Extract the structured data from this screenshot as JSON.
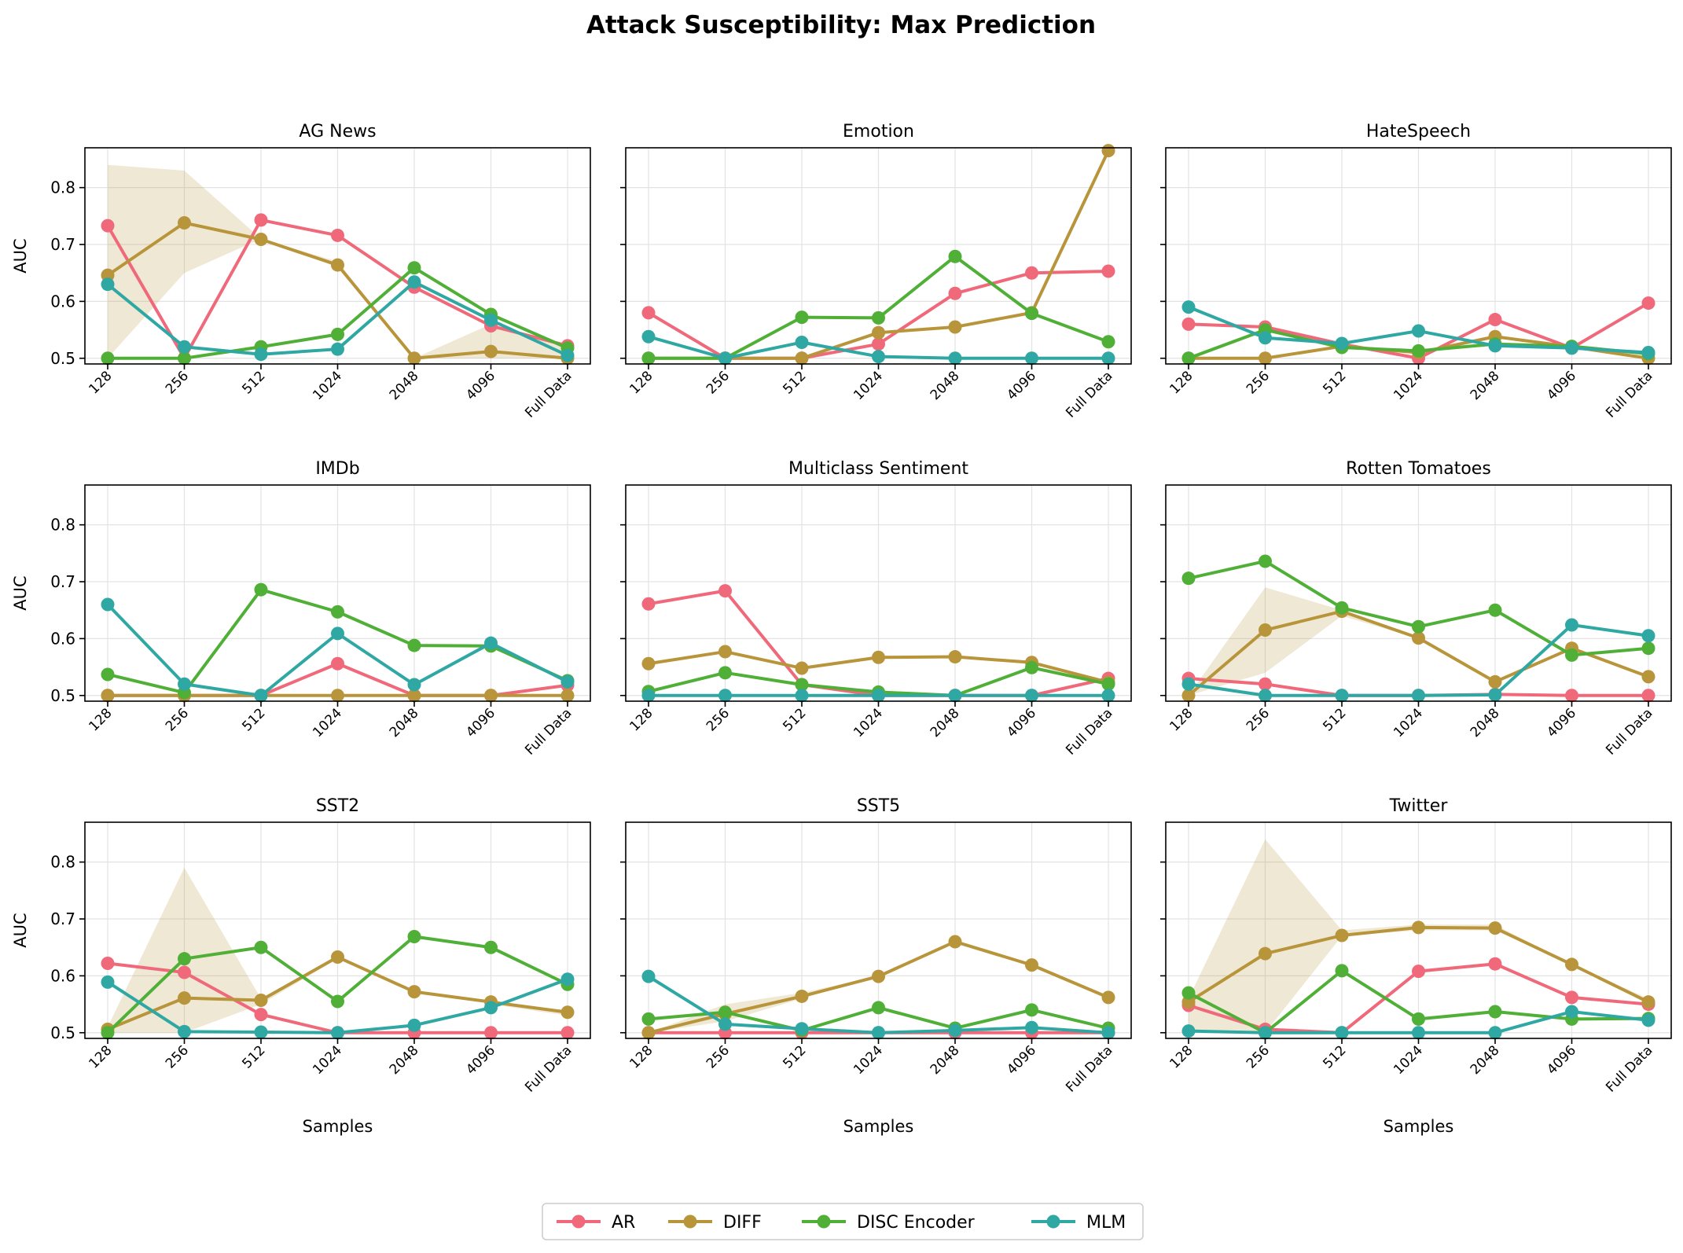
{
  "title": "Attack Susceptibility: Max Prediction",
  "legend": {
    "placement": "bottom-center",
    "items": [
      {
        "name": "AR",
        "color": "#f0697b"
      },
      {
        "name": "DIFF",
        "color": "#b8953a"
      },
      {
        "name": "DISC Encoder",
        "color": "#4faf36"
      },
      {
        "name": "MLM",
        "color": "#2fa8a4"
      }
    ]
  },
  "shared_axes": {
    "categories": [
      "128",
      "256",
      "512",
      "1024",
      "2048",
      "4096",
      "Full Data"
    ],
    "ylim": [
      0.49,
      0.87
    ],
    "yticks": [
      "0.5",
      "0.6",
      "0.7",
      "0.8"
    ],
    "ylabel": "AUC",
    "xlabel": "Samples"
  },
  "chart_data": [
    {
      "type": "line",
      "title": "AG News",
      "grid": true,
      "series": [
        {
          "name": "AR",
          "values": [
            0.733,
            0.5,
            0.743,
            0.716,
            0.625,
            0.557,
            0.522
          ]
        },
        {
          "name": "DIFF",
          "values": [
            0.646,
            0.738,
            0.709,
            0.664,
            0.5,
            0.512,
            0.5
          ]
        },
        {
          "name": "DISC Encoder",
          "values": [
            0.5,
            0.5,
            0.52,
            0.542,
            0.659,
            0.577,
            0.518
          ]
        },
        {
          "name": "MLM",
          "values": [
            0.63,
            0.52,
            0.507,
            0.516,
            0.634,
            0.567,
            0.505
          ]
        }
      ],
      "band": {
        "series": "DIFF",
        "lower": [
          0.5,
          0.65,
          0.71,
          0.66,
          0.5,
          0.5,
          0.5
        ],
        "upper": [
          0.84,
          0.83,
          0.71,
          0.67,
          0.5,
          0.56,
          0.52
        ]
      }
    },
    {
      "type": "line",
      "title": "Emotion",
      "grid": true,
      "series": [
        {
          "name": "AR",
          "values": [
            0.58,
            0.5,
            0.5,
            0.525,
            0.614,
            0.65,
            0.653
          ]
        },
        {
          "name": "DIFF",
          "values": [
            0.5,
            0.5,
            0.5,
            0.545,
            0.555,
            0.58,
            0.865
          ]
        },
        {
          "name": "DISC Encoder",
          "values": [
            0.5,
            0.5,
            0.572,
            0.571,
            0.679,
            0.579,
            0.529
          ]
        },
        {
          "name": "MLM",
          "values": [
            0.538,
            0.5,
            0.528,
            0.503,
            0.5,
            0.5,
            0.5
          ]
        }
      ]
    },
    {
      "type": "line",
      "title": "HateSpeech",
      "grid": true,
      "series": [
        {
          "name": "AR",
          "values": [
            0.56,
            0.555,
            0.525,
            0.5,
            0.568,
            0.518,
            0.597
          ]
        },
        {
          "name": "DIFF",
          "values": [
            0.5,
            0.5,
            0.521,
            0.51,
            0.538,
            0.52,
            0.5
          ]
        },
        {
          "name": "DISC Encoder",
          "values": [
            0.5,
            0.55,
            0.519,
            0.513,
            0.525,
            0.521,
            0.508
          ]
        },
        {
          "name": "MLM",
          "values": [
            0.59,
            0.536,
            0.526,
            0.548,
            0.522,
            0.518,
            0.51
          ]
        }
      ]
    },
    {
      "type": "line",
      "title": "IMDb",
      "grid": true,
      "series": [
        {
          "name": "AR",
          "values": [
            0.5,
            0.5,
            0.5,
            0.556,
            0.5,
            0.5,
            0.518
          ]
        },
        {
          "name": "DIFF",
          "values": [
            0.5,
            0.5,
            0.5,
            0.5,
            0.5,
            0.5,
            0.5
          ]
        },
        {
          "name": "DISC Encoder",
          "values": [
            0.537,
            0.505,
            0.686,
            0.647,
            0.588,
            0.587,
            0.526
          ]
        },
        {
          "name": "MLM",
          "values": [
            0.66,
            0.52,
            0.5,
            0.609,
            0.519,
            0.592,
            0.524
          ]
        }
      ]
    },
    {
      "type": "line",
      "title": "Multiclass Sentiment",
      "grid": true,
      "series": [
        {
          "name": "AR",
          "values": [
            0.661,
            0.684,
            0.519,
            0.5,
            0.5,
            0.5,
            0.53
          ]
        },
        {
          "name": "DIFF",
          "values": [
            0.556,
            0.577,
            0.548,
            0.567,
            0.568,
            0.558,
            0.523
          ]
        },
        {
          "name": "DISC Encoder",
          "values": [
            0.507,
            0.54,
            0.519,
            0.506,
            0.5,
            0.549,
            0.52
          ]
        },
        {
          "name": "MLM",
          "values": [
            0.5,
            0.5,
            0.5,
            0.5,
            0.5,
            0.5,
            0.5
          ]
        }
      ]
    },
    {
      "type": "line",
      "title": "Rotten Tomatoes",
      "grid": true,
      "series": [
        {
          "name": "AR",
          "values": [
            0.53,
            0.52,
            0.5,
            0.5,
            0.502,
            0.5,
            0.5
          ]
        },
        {
          "name": "DIFF",
          "values": [
            0.5,
            0.615,
            0.648,
            0.601,
            0.524,
            0.583,
            0.533
          ]
        },
        {
          "name": "DISC Encoder",
          "values": [
            0.706,
            0.736,
            0.654,
            0.621,
            0.65,
            0.571,
            0.583
          ]
        },
        {
          "name": "MLM",
          "values": [
            0.52,
            0.5,
            0.5,
            0.5,
            0.501,
            0.624,
            0.605
          ]
        }
      ],
      "band": {
        "series": "DIFF",
        "lower": [
          0.5,
          0.54,
          0.64,
          0.6,
          0.52,
          0.58,
          0.53
        ],
        "upper": [
          0.5,
          0.69,
          0.65,
          0.6,
          0.52,
          0.58,
          0.53
        ]
      }
    },
    {
      "type": "line",
      "title": "SST2",
      "grid": true,
      "series": [
        {
          "name": "AR",
          "values": [
            0.622,
            0.606,
            0.532,
            0.5,
            0.5,
            0.5,
            0.5
          ]
        },
        {
          "name": "DIFF",
          "values": [
            0.506,
            0.561,
            0.557,
            0.633,
            0.572,
            0.554,
            0.536
          ]
        },
        {
          "name": "DISC Encoder",
          "values": [
            0.5,
            0.63,
            0.65,
            0.555,
            0.669,
            0.65,
            0.585
          ]
        },
        {
          "name": "MLM",
          "values": [
            0.589,
            0.502,
            0.501,
            0.5,
            0.513,
            0.544,
            0.594
          ]
        }
      ],
      "band": {
        "series": "DIFF",
        "lower": [
          0.5,
          0.5,
          0.55,
          0.63,
          0.57,
          0.55,
          0.53
        ],
        "upper": [
          0.51,
          0.79,
          0.56,
          0.63,
          0.57,
          0.55,
          0.54
        ]
      }
    },
    {
      "type": "line",
      "title": "SST5",
      "grid": true,
      "series": [
        {
          "name": "AR",
          "values": [
            0.5,
            0.5,
            0.5,
            0.5,
            0.5,
            0.5,
            0.5
          ]
        },
        {
          "name": "DIFF",
          "values": [
            0.5,
            0.533,
            0.564,
            0.599,
            0.66,
            0.619,
            0.562
          ]
        },
        {
          "name": "DISC Encoder",
          "values": [
            0.524,
            0.536,
            0.504,
            0.544,
            0.508,
            0.54,
            0.508
          ]
        },
        {
          "name": "MLM",
          "values": [
            0.599,
            0.515,
            0.507,
            0.5,
            0.504,
            0.509,
            0.5
          ]
        }
      ],
      "band": {
        "series": "DIFF",
        "lower": [
          0.5,
          0.52,
          0.56,
          0.6,
          0.66,
          0.62,
          0.56
        ],
        "upper": [
          0.5,
          0.55,
          0.57,
          0.6,
          0.66,
          0.62,
          0.56
        ]
      }
    },
    {
      "type": "line",
      "title": "Twitter",
      "grid": true,
      "series": [
        {
          "name": "AR",
          "values": [
            0.548,
            0.506,
            0.5,
            0.608,
            0.621,
            0.562,
            0.55
          ]
        },
        {
          "name": "DIFF",
          "values": [
            0.554,
            0.639,
            0.671,
            0.685,
            0.684,
            0.62,
            0.554
          ]
        },
        {
          "name": "DISC Encoder",
          "values": [
            0.57,
            0.5,
            0.609,
            0.524,
            0.537,
            0.524,
            0.525
          ]
        },
        {
          "name": "MLM",
          "values": [
            0.503,
            0.5,
            0.5,
            0.5,
            0.5,
            0.537,
            0.522
          ]
        }
      ],
      "band": {
        "series": "DIFF",
        "lower": [
          0.5,
          0.5,
          0.67,
          0.68,
          0.68,
          0.62,
          0.55
        ],
        "upper": [
          0.56,
          0.84,
          0.68,
          0.69,
          0.69,
          0.62,
          0.56
        ]
      }
    }
  ]
}
